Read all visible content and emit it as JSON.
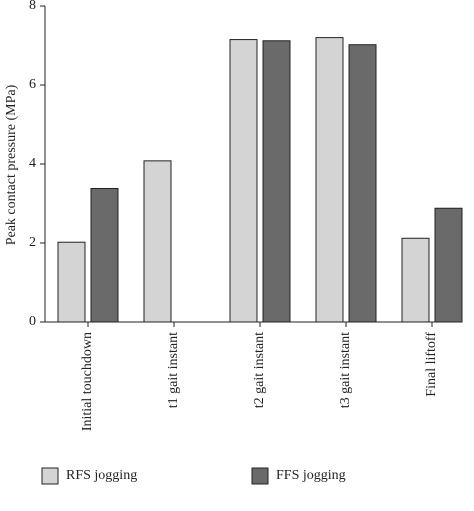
{
  "chart_data": {
    "type": "bar",
    "y_label": "Peak contact pressure (MPa)",
    "categories": [
      "Initial touchdown",
      "t1 gait instant",
      "t2 gait instant",
      "t3 gait instant",
      "Final liftoff"
    ],
    "series": [
      {
        "name": "RFS jogging",
        "color": "#d4d4d4",
        "values": [
          2.02,
          4.08,
          7.15,
          7.2,
          2.12
        ]
      },
      {
        "name": "FFS jogging",
        "color": "#6a6a6a",
        "values": [
          3.38,
          null,
          7.12,
          7.02,
          2.88
        ]
      }
    ],
    "ylim": [
      0,
      8
    ],
    "yticks": [
      0,
      2,
      4,
      6,
      8
    ]
  }
}
